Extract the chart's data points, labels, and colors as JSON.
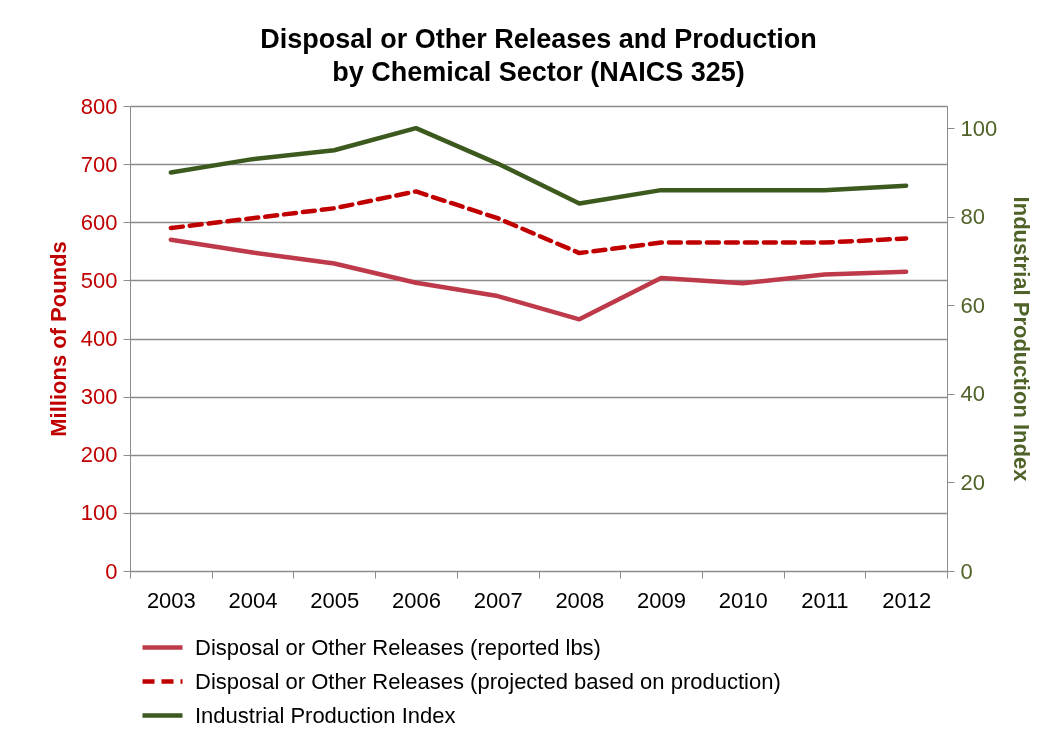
{
  "chart_data": {
    "type": "line",
    "title": "Disposal or Other Releases and Production\nby Chemical Sector (NAICS 325)",
    "ylabel": "Millions of Pounds",
    "y2label": "Industrial Production Index",
    "categories": [
      "2003",
      "2004",
      "2005",
      "2006",
      "2007",
      "2008",
      "2009",
      "2010",
      "2011",
      "2012"
    ],
    "series": [
      {
        "name": "Disposal or Other Releases (reported lbs)",
        "color": "#be3a4a",
        "line_style": "solid",
        "values": [
          570,
          548,
          529,
          496,
          473,
          433,
          504,
          495,
          510,
          515
        ]
      },
      {
        "name": "Disposal or Other Releases (projected based on production)",
        "color": "#c00000",
        "line_style": "dashed",
        "values": [
          590,
          607,
          624,
          653,
          607,
          547,
          565,
          565,
          565,
          572
        ]
      },
      {
        "name": "Industrial Production Index",
        "color": "#3d5a1e",
        "line_style": "solid",
        "axis": "y2",
        "values": [
          90,
          93,
          95,
          100,
          92,
          83,
          86,
          86,
          86,
          87
        ]
      }
    ],
    "ylim": [
      0,
      800
    ],
    "yticks": [
      0,
      100,
      200,
      300,
      400,
      500,
      600,
      700,
      800
    ],
    "y2lim": [
      0,
      105
    ],
    "y2ticks": [
      0,
      20,
      40,
      60,
      80,
      100
    ],
    "grid": "y",
    "legend": "bottom",
    "marker": "none"
  }
}
